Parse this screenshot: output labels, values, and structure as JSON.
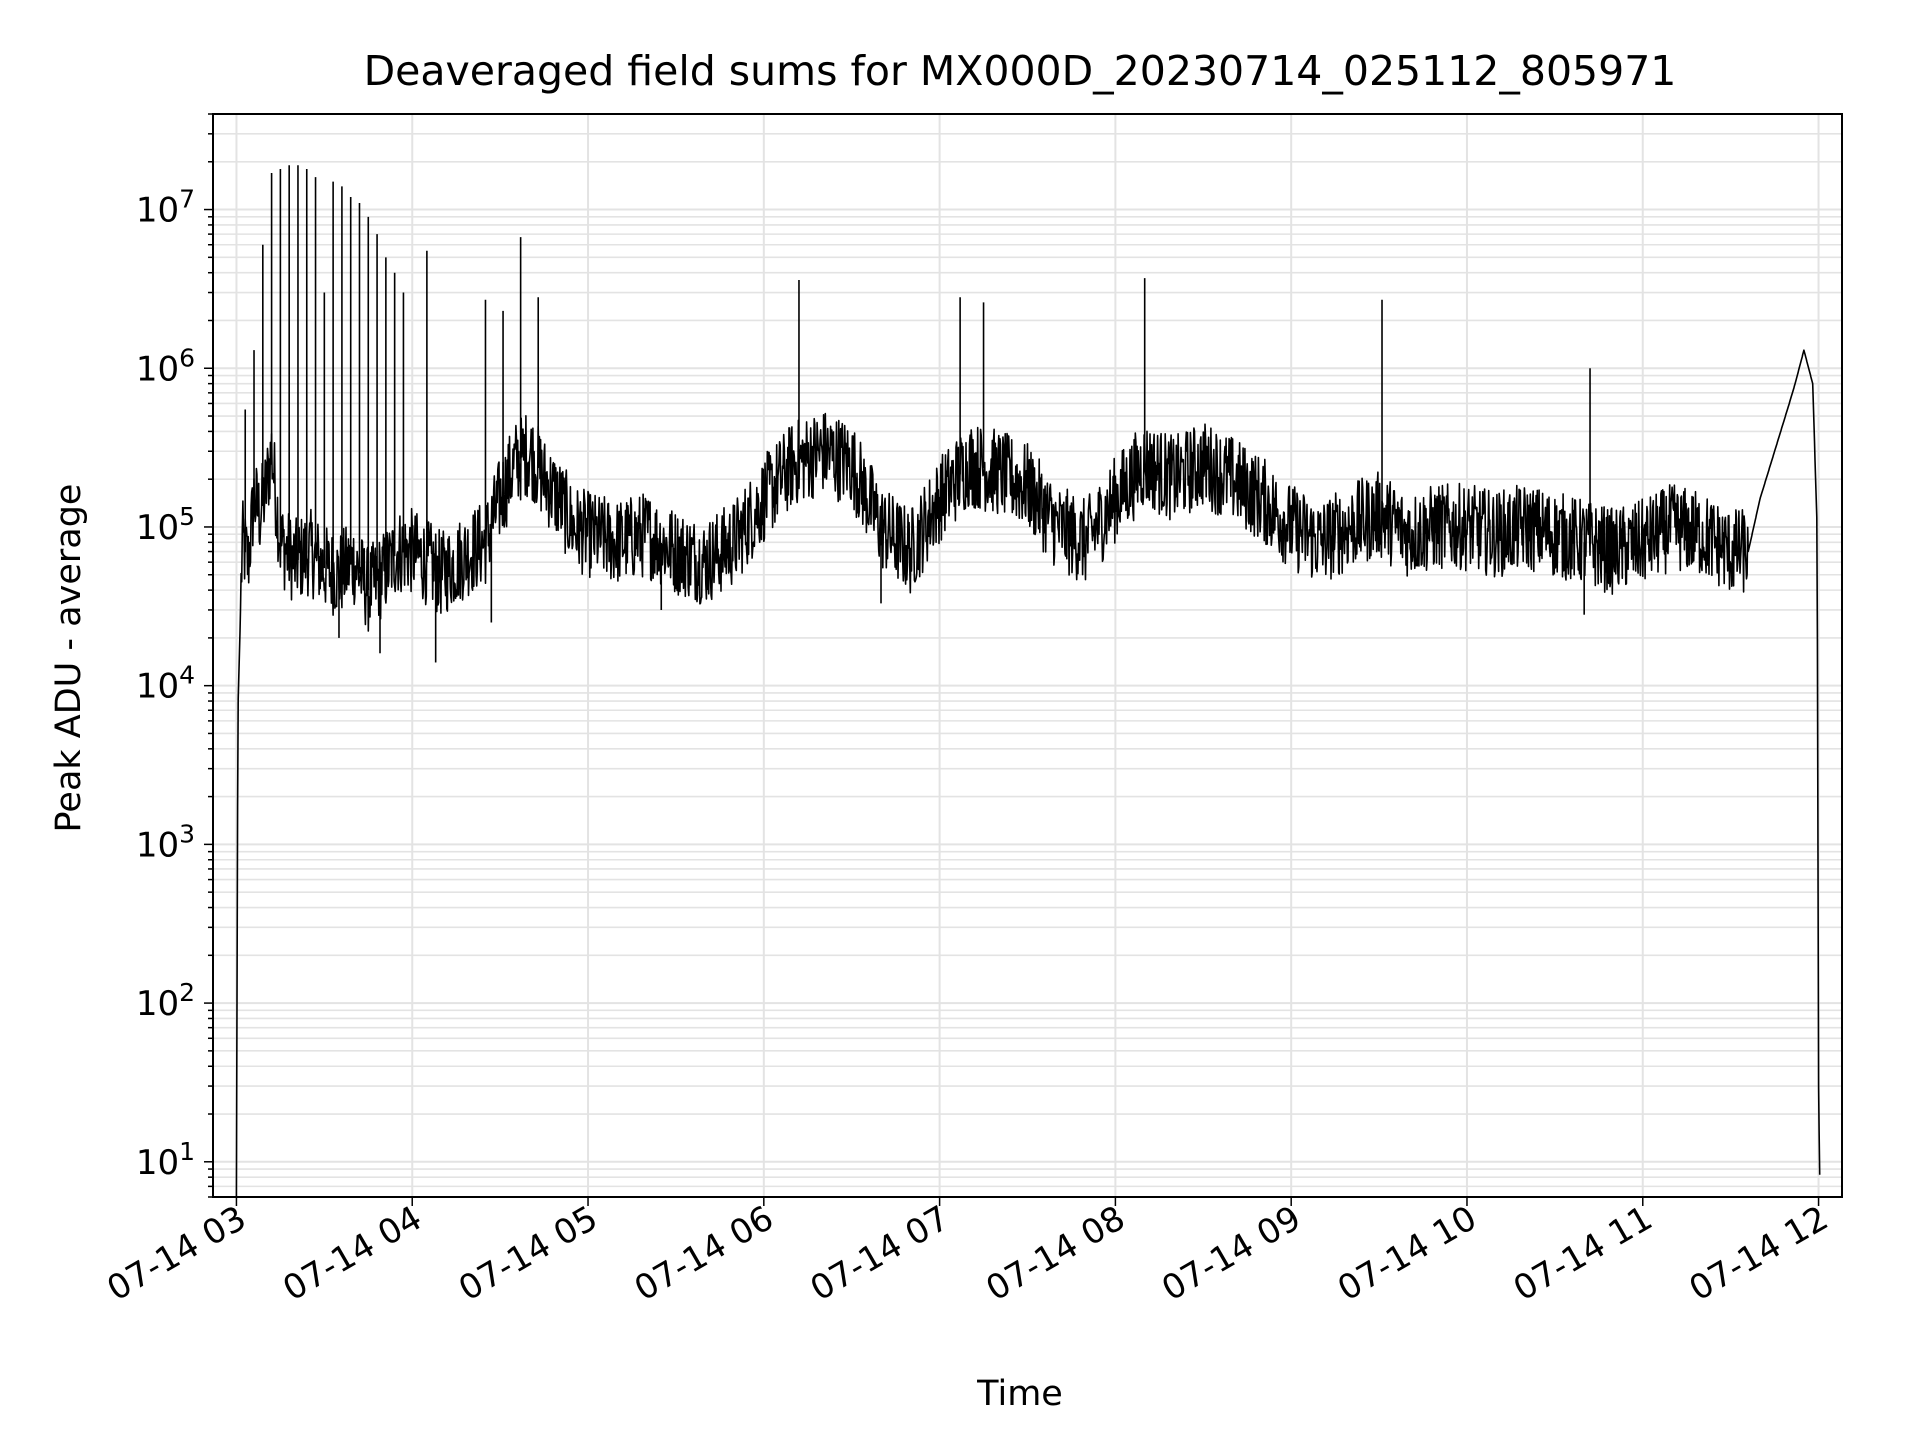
{
  "chart_data": {
    "type": "line",
    "title": "Deaveraged field sums for MX000D_20230714_025112_805971",
    "xlabel": "Time",
    "ylabel": "Peak ADU - average",
    "yscale": "log",
    "ylim": [
      6,
      40000000
    ],
    "xlim": [
      "2023-07-14T02:52:00",
      "2023-07-14T12:08:00"
    ],
    "x_ticks": [
      {
        "t": "2023-07-14T03:00:00",
        "label": "07-14 03"
      },
      {
        "t": "2023-07-14T04:00:00",
        "label": "07-14 04"
      },
      {
        "t": "2023-07-14T05:00:00",
        "label": "07-14 05"
      },
      {
        "t": "2023-07-14T06:00:00",
        "label": "07-14 06"
      },
      {
        "t": "2023-07-14T07:00:00",
        "label": "07-14 07"
      },
      {
        "t": "2023-07-14T08:00:00",
        "label": "07-14 08"
      },
      {
        "t": "2023-07-14T09:00:00",
        "label": "07-14 09"
      },
      {
        "t": "2023-07-14T10:00:00",
        "label": "07-14 10"
      },
      {
        "t": "2023-07-14T11:00:00",
        "label": "07-14 11"
      },
      {
        "t": "2023-07-14T12:00:00",
        "label": "07-14 12"
      }
    ],
    "y_ticks": [
      {
        "value": 10,
        "base": "10",
        "exp": "1"
      },
      {
        "value": 100,
        "base": "10",
        "exp": "2"
      },
      {
        "value": 1000,
        "base": "10",
        "exp": "3"
      },
      {
        "value": 10000,
        "base": "10",
        "exp": "4"
      },
      {
        "value": 100000,
        "base": "10",
        "exp": "5"
      },
      {
        "value": 1000000,
        "base": "10",
        "exp": "6"
      },
      {
        "value": 10000000,
        "base": "10",
        "exp": "7"
      }
    ],
    "grid": true,
    "line_color": "#000000",
    "grid_color": "#e3e3e3",
    "series": [
      {
        "x": [
          "2023-07-14T03:00:00",
          "2023-07-14T03:00:30",
          "2023-07-14T03:02:00",
          "2023-07-14T03:04:00",
          "2023-07-14T03:06:00",
          "2023-07-14T03:08:00",
          "2023-07-14T03:10:00",
          "2023-07-14T03:12:00",
          "2023-07-14T03:15:00",
          "2023-07-14T03:20:00",
          "2023-07-14T03:25:00",
          "2023-07-14T03:30:00",
          "2023-07-14T03:35:00",
          "2023-07-14T03:40:00",
          "2023-07-14T03:45:00",
          "2023-07-14T03:50:00",
          "2023-07-14T03:55:00",
          "2023-07-14T04:00:00",
          "2023-07-14T04:05:00",
          "2023-07-14T04:10:00",
          "2023-07-14T04:15:00",
          "2023-07-14T04:20:00",
          "2023-07-14T04:25:00",
          "2023-07-14T04:30:00",
          "2023-07-14T04:35:00",
          "2023-07-14T04:40:00",
          "2023-07-14T04:45:00",
          "2023-07-14T04:50:00",
          "2023-07-14T04:55:00",
          "2023-07-14T05:00:00",
          "2023-07-14T05:10:00",
          "2023-07-14T05:20:00",
          "2023-07-14T05:30:00",
          "2023-07-14T05:40:00",
          "2023-07-14T05:50:00",
          "2023-07-14T06:00:00",
          "2023-07-14T06:10:00",
          "2023-07-14T06:20:00",
          "2023-07-14T06:30:00",
          "2023-07-14T06:40:00",
          "2023-07-14T06:50:00",
          "2023-07-14T07:00:00",
          "2023-07-14T07:10:00",
          "2023-07-14T07:20:00",
          "2023-07-14T07:30:00",
          "2023-07-14T07:40:00",
          "2023-07-14T07:50:00",
          "2023-07-14T08:00:00",
          "2023-07-14T08:10:00",
          "2023-07-14T08:20:00",
          "2023-07-14T08:30:00",
          "2023-07-14T08:40:00",
          "2023-07-14T08:50:00",
          "2023-07-14T09:00:00",
          "2023-07-14T09:10:00",
          "2023-07-14T09:20:00",
          "2023-07-14T09:30:00",
          "2023-07-14T09:40:00",
          "2023-07-14T09:50:00",
          "2023-07-14T10:00:00",
          "2023-07-14T10:10:00",
          "2023-07-14T10:20:00",
          "2023-07-14T10:30:00",
          "2023-07-14T10:40:00",
          "2023-07-14T10:50:00",
          "2023-07-14T11:00:00",
          "2023-07-14T11:10:00",
          "2023-07-14T11:20:00",
          "2023-07-14T11:30:00",
          "2023-07-14T11:36:00",
          "2023-07-14T11:40:00",
          "2023-07-14T11:45:00",
          "2023-07-14T11:50:00",
          "2023-07-14T11:52:00",
          "2023-07-14T11:55:00",
          "2023-07-14T11:58:00",
          "2023-07-14T11:59:30",
          "2023-07-14T12:00:00",
          "2023-07-14T12:00:30"
        ],
        "y": [
          6,
          7000,
          80000,
          60000,
          150000,
          120000,
          170000,
          300000,
          80000,
          60000,
          70000,
          55000,
          50000,
          60000,
          40000,
          50000,
          70000,
          70000,
          60000,
          50000,
          60000,
          70000,
          80000,
          150000,
          250000,
          300000,
          200000,
          150000,
          100000,
          90000,
          80000,
          90000,
          70000,
          60000,
          80000,
          150000,
          250000,
          300000,
          250000,
          100000,
          70000,
          150000,
          250000,
          220000,
          180000,
          100000,
          80000,
          150000,
          250000,
          200000,
          250000,
          200000,
          150000,
          100000,
          80000,
          100000,
          120000,
          90000,
          100000,
          100000,
          90000,
          100000,
          90000,
          80000,
          70000,
          80000,
          100000,
          90000,
          70000,
          70000,
          150000,
          300000,
          600000,
          800000,
          1300000,
          800000,
          100000,
          30,
          6
        ],
        "spikes": [
          {
            "t": "2023-07-14T03:03:00",
            "y": 550000
          },
          {
            "t": "2023-07-14T03:06:00",
            "y": 1300000
          },
          {
            "t": "2023-07-14T03:09:00",
            "y": 6000000
          },
          {
            "t": "2023-07-14T03:12:00",
            "y": 17000000
          },
          {
            "t": "2023-07-14T03:15:00",
            "y": 18000000
          },
          {
            "t": "2023-07-14T03:18:00",
            "y": 19000000
          },
          {
            "t": "2023-07-14T03:21:00",
            "y": 19000000
          },
          {
            "t": "2023-07-14T03:24:00",
            "y": 18000000
          },
          {
            "t": "2023-07-14T03:27:00",
            "y": 16000000
          },
          {
            "t": "2023-07-14T03:30:00",
            "y": 3000000
          },
          {
            "t": "2023-07-14T03:33:00",
            "y": 15000000
          },
          {
            "t": "2023-07-14T03:36:00",
            "y": 14000000
          },
          {
            "t": "2023-07-14T03:39:00",
            "y": 12000000
          },
          {
            "t": "2023-07-14T03:42:00",
            "y": 11000000
          },
          {
            "t": "2023-07-14T03:45:00",
            "y": 9000000
          },
          {
            "t": "2023-07-14T03:48:00",
            "y": 7000000
          },
          {
            "t": "2023-07-14T03:51:00",
            "y": 5000000
          },
          {
            "t": "2023-07-14T03:54:00",
            "y": 4000000
          },
          {
            "t": "2023-07-14T03:57:00",
            "y": 3000000
          },
          {
            "t": "2023-07-14T04:05:00",
            "y": 5500000
          },
          {
            "t": "2023-07-14T04:25:00",
            "y": 2700000
          },
          {
            "t": "2023-07-14T04:31:00",
            "y": 2300000
          },
          {
            "t": "2023-07-14T04:37:00",
            "y": 6700000
          },
          {
            "t": "2023-07-14T04:43:00",
            "y": 2800000
          },
          {
            "t": "2023-07-14T06:12:00",
            "y": 3600000
          },
          {
            "t": "2023-07-14T07:07:00",
            "y": 2800000
          },
          {
            "t": "2023-07-14T07:15:00",
            "y": 2600000
          },
          {
            "t": "2023-07-14T08:10:00",
            "y": 3700000
          },
          {
            "t": "2023-07-14T09:31:00",
            "y": 2700000
          },
          {
            "t": "2023-07-14T10:42:00",
            "y": 1000000
          }
        ],
        "dips": [
          {
            "t": "2023-07-14T03:35:00",
            "y": 20000
          },
          {
            "t": "2023-07-14T03:49:00",
            "y": 16000
          },
          {
            "t": "2023-07-14T04:08:00",
            "y": 14000
          },
          {
            "t": "2023-07-14T04:27:00",
            "y": 25000
          },
          {
            "t": "2023-07-14T05:25:00",
            "y": 30000
          },
          {
            "t": "2023-07-14T06:40:00",
            "y": 33000
          },
          {
            "t": "2023-07-14T10:40:00",
            "y": 28000
          }
        ]
      }
    ]
  }
}
